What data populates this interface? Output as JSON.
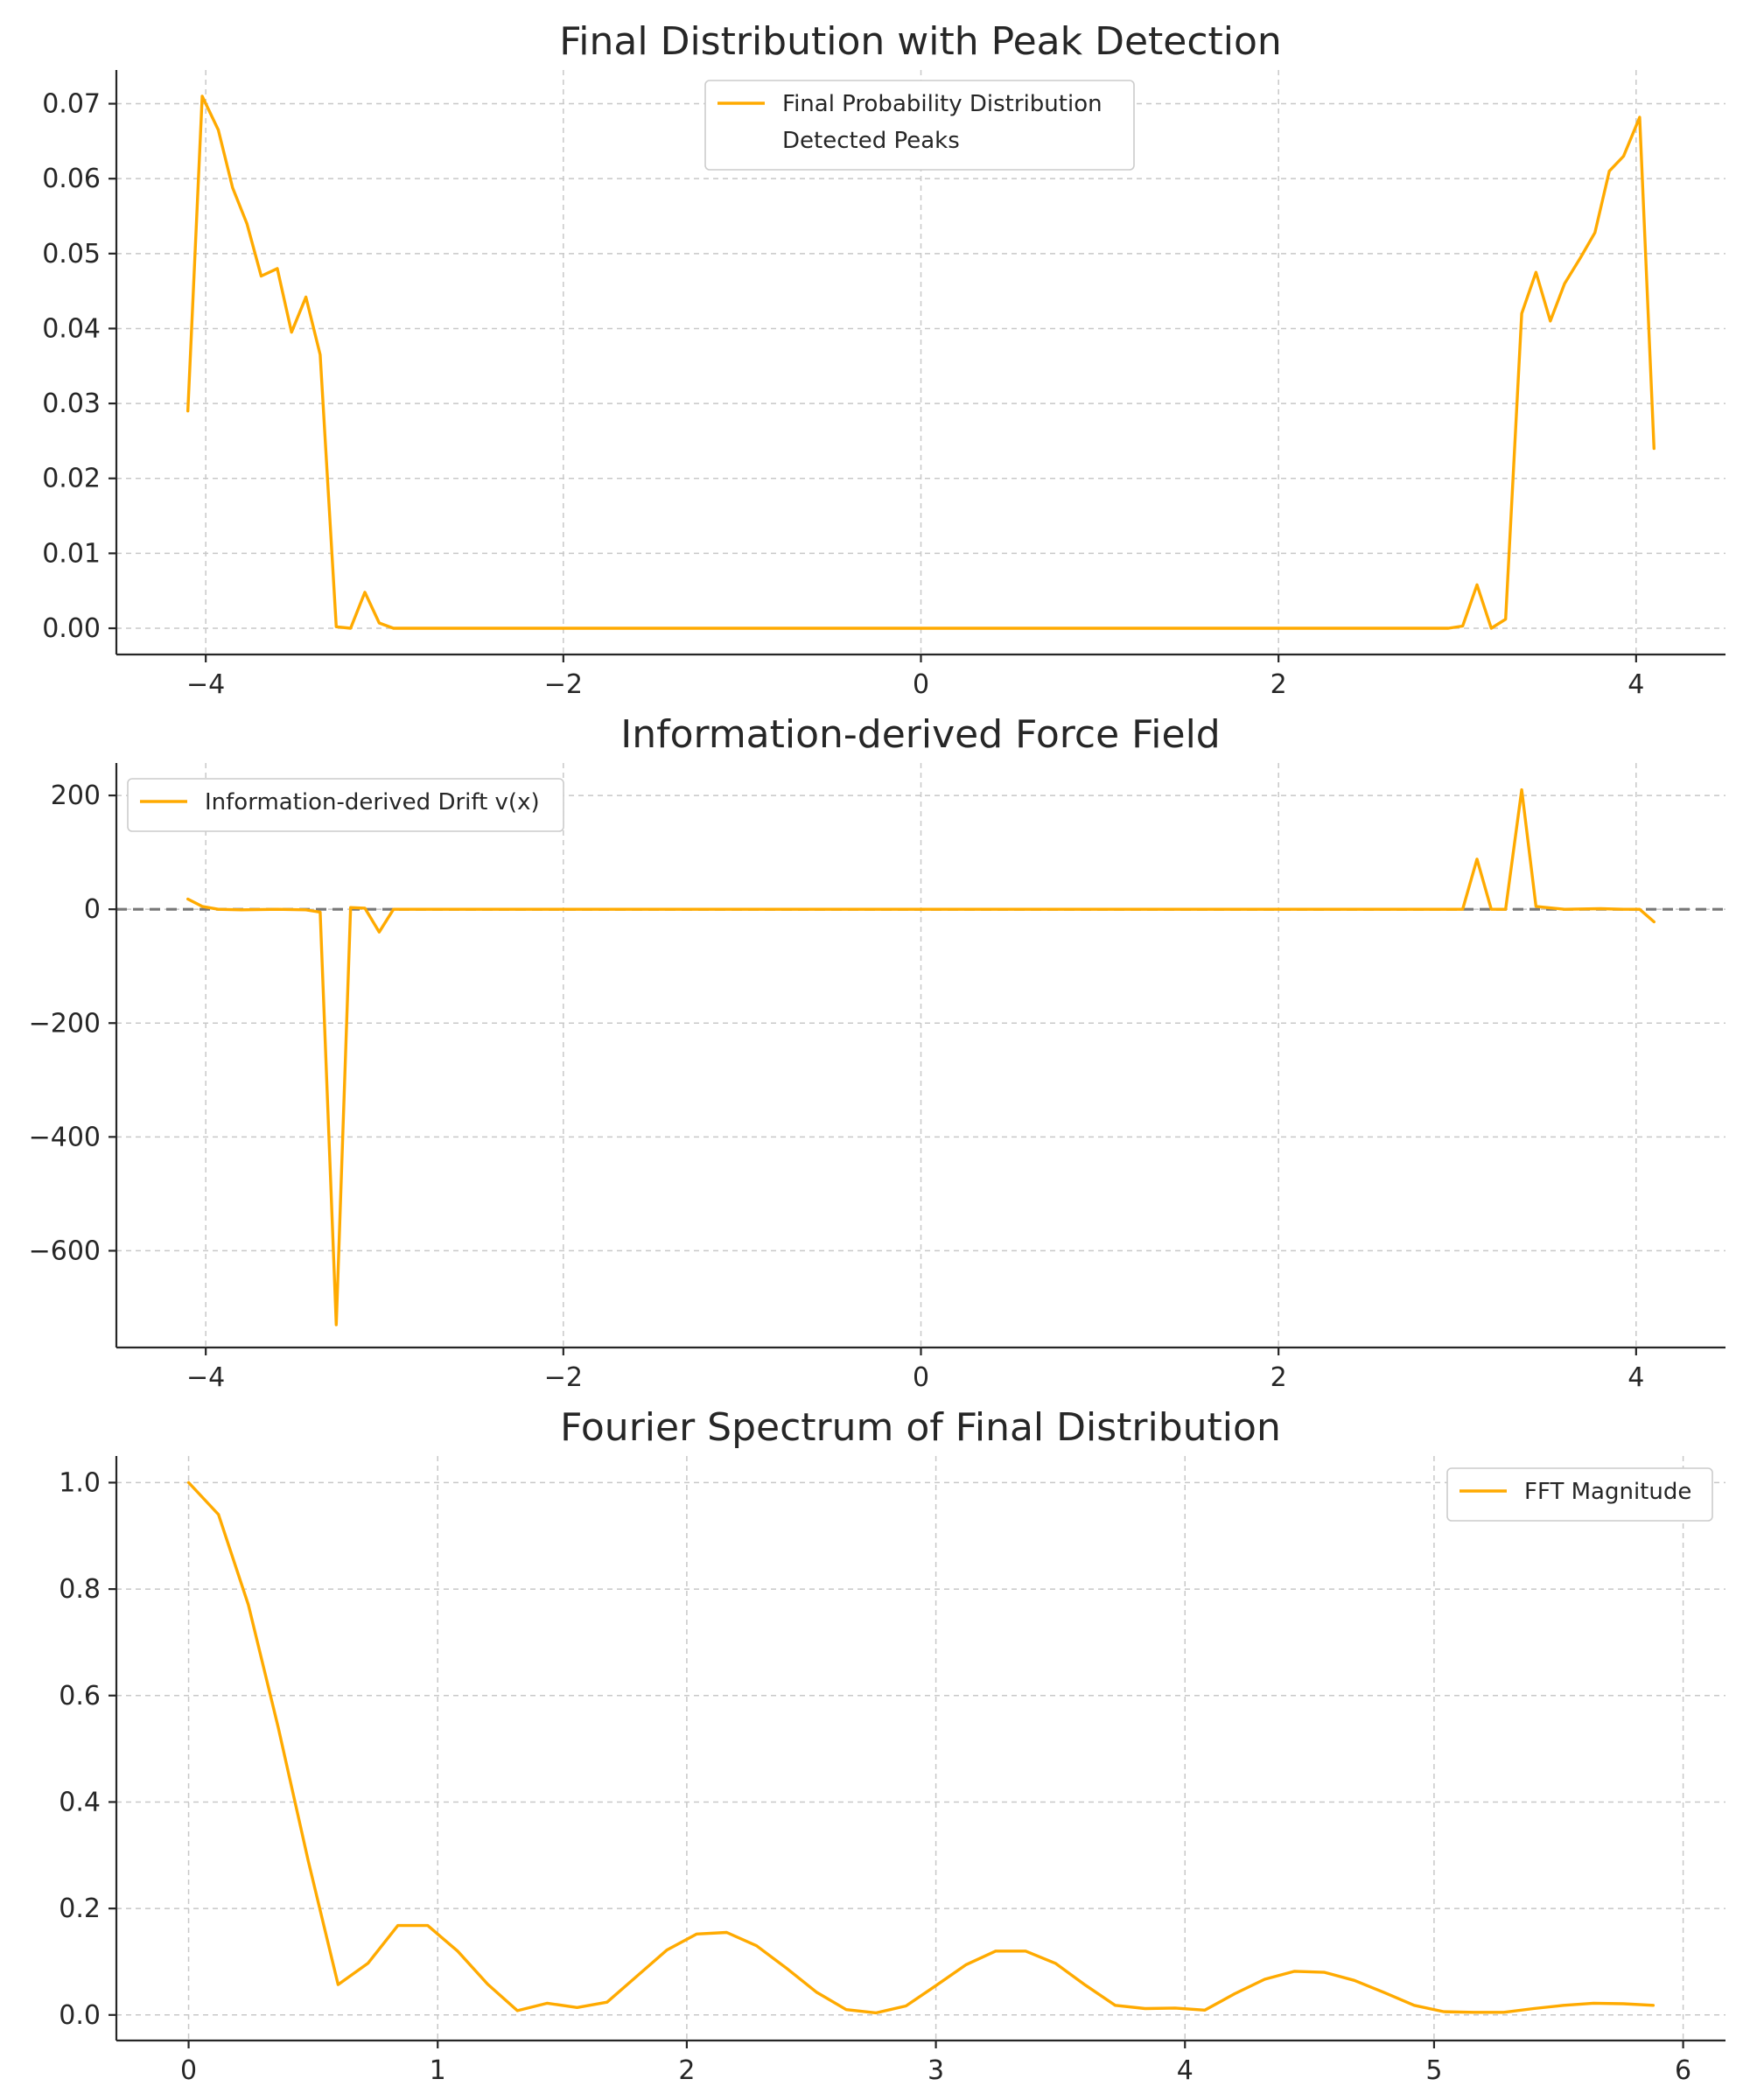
{
  "colors": {
    "line": "#FFAA00",
    "grid": "#c8c8c8",
    "axis": "#262626",
    "reference_line": "#777777"
  },
  "chart_data": [
    {
      "type": "line",
      "title": "Final Distribution with Peak Detection",
      "xlabel": "",
      "ylabel": "",
      "xlim": [
        -4.5,
        4.5
      ],
      "ylim": [
        -0.0035,
        0.0745
      ],
      "xticks": [
        -4,
        -2,
        0,
        2,
        4
      ],
      "xtick_labels": [
        "−4",
        "−2",
        "0",
        "2",
        "4"
      ],
      "yticks": [
        0.0,
        0.01,
        0.02,
        0.03,
        0.04,
        0.05,
        0.06,
        0.07
      ],
      "ytick_labels": [
        "0.00",
        "0.01",
        "0.02",
        "0.03",
        "0.04",
        "0.05",
        "0.06",
        "0.07"
      ],
      "grid": true,
      "legend": {
        "position": "upper-center",
        "entries": [
          "Final Probability Distribution",
          "Detected Peaks"
        ]
      },
      "series": [
        {
          "name": "Final Probability Distribution",
          "color": "#FFAA00",
          "x": [
            -4.1,
            -4.02,
            -3.93,
            -3.85,
            -3.77,
            -3.69,
            -3.6,
            -3.52,
            -3.44,
            -3.36,
            -3.27,
            -3.19,
            -3.11,
            -3.03,
            -2.95,
            -2.8,
            -2.5,
            -2.0,
            -1.0,
            0.0,
            1.0,
            2.0,
            2.5,
            2.8,
            2.95,
            3.03,
            3.11,
            3.19,
            3.27,
            3.36,
            3.44,
            3.52,
            3.6,
            3.69,
            3.77,
            3.85,
            3.93,
            4.02,
            4.1
          ],
          "y": [
            0.029,
            0.071,
            0.0665,
            0.0588,
            0.054,
            0.047,
            0.048,
            0.0395,
            0.0442,
            0.0365,
            0.0002,
            0.0,
            0.0048,
            0.0007,
            0.0,
            0.0,
            0.0,
            0.0,
            0.0,
            0.0,
            0.0,
            0.0,
            0.0,
            0.0,
            0.0,
            0.0003,
            0.0058,
            0.0,
            0.0012,
            0.042,
            0.0475,
            0.041,
            0.046,
            0.0495,
            0.0528,
            0.061,
            0.063,
            0.0682,
            0.024
          ]
        },
        {
          "name": "Detected Peaks",
          "color": "none",
          "x": [],
          "y": []
        }
      ]
    },
    {
      "type": "line",
      "title": "Information-derived Force Field",
      "xlabel": "",
      "ylabel": "",
      "xlim": [
        -4.5,
        4.5
      ],
      "ylim": [
        -770,
        257
      ],
      "xticks": [
        -4,
        -2,
        0,
        2,
        4
      ],
      "xtick_labels": [
        "−4",
        "−2",
        "0",
        "2",
        "4"
      ],
      "yticks": [
        -600,
        -400,
        -200,
        0,
        200
      ],
      "ytick_labels": [
        "−600",
        "−400",
        "−200",
        "0",
        "200"
      ],
      "grid": true,
      "reference_line": {
        "y": 0,
        "style": "dashed"
      },
      "legend": {
        "position": "upper-left",
        "entries": [
          "Information-derived Drift v(x)"
        ]
      },
      "series": [
        {
          "name": "Information-derived Drift v(x)",
          "color": "#FFAA00",
          "x": [
            -4.1,
            -4.02,
            -3.93,
            -3.8,
            -3.6,
            -3.44,
            -3.36,
            -3.27,
            -3.19,
            -3.11,
            -3.03,
            -2.95,
            -2.5,
            -1.5,
            0.0,
            1.5,
            2.5,
            2.95,
            3.03,
            3.11,
            3.19,
            3.27,
            3.36,
            3.44,
            3.6,
            3.8,
            3.93,
            4.02,
            4.1
          ],
          "y": [
            18,
            5,
            0,
            -1,
            0,
            -1,
            -5,
            -730,
            3,
            2,
            -40,
            0,
            0,
            0,
            0,
            0,
            0,
            0,
            0,
            88,
            0,
            0,
            210,
            5,
            0,
            1,
            0,
            0,
            -22
          ]
        }
      ]
    },
    {
      "type": "line",
      "title": "Fourier Spectrum of Final Distribution",
      "xlabel": "",
      "ylabel": "",
      "xlim": [
        -0.29,
        6.17
      ],
      "ylim": [
        -0.048,
        1.05
      ],
      "xticks": [
        0,
        1,
        2,
        3,
        4,
        5,
        6
      ],
      "xtick_labels": [
        "0",
        "1",
        "2",
        "3",
        "4",
        "5",
        "6"
      ],
      "yticks": [
        0.0,
        0.2,
        0.4,
        0.6,
        0.8,
        1.0
      ],
      "ytick_labels": [
        "0.0",
        "0.2",
        "0.4",
        "0.6",
        "0.8",
        "1.0"
      ],
      "grid": true,
      "legend": {
        "position": "upper-right",
        "entries": [
          "FFT Magnitude"
        ]
      },
      "series": [
        {
          "name": "FFT Magnitude",
          "color": "#FFAA00",
          "x": [
            0.0,
            0.12,
            0.24,
            0.36,
            0.48,
            0.6,
            0.72,
            0.84,
            0.96,
            1.08,
            1.2,
            1.32,
            1.44,
            1.56,
            1.68,
            1.8,
            1.92,
            2.04,
            2.16,
            2.28,
            2.4,
            2.52,
            2.64,
            2.76,
            2.88,
            3.0,
            3.12,
            3.24,
            3.36,
            3.48,
            3.6,
            3.72,
            3.84,
            3.96,
            4.08,
            4.2,
            4.32,
            4.44,
            4.56,
            4.68,
            4.8,
            4.92,
            5.04,
            5.16,
            5.28,
            5.4,
            5.52,
            5.64,
            5.76,
            5.88
          ],
          "y": [
            1.0,
            0.94,
            0.77,
            0.54,
            0.29,
            0.057,
            0.097,
            0.168,
            0.168,
            0.12,
            0.058,
            0.008,
            0.022,
            0.014,
            0.024,
            0.073,
            0.122,
            0.152,
            0.155,
            0.13,
            0.088,
            0.043,
            0.01,
            0.004,
            0.017,
            0.055,
            0.094,
            0.12,
            0.12,
            0.097,
            0.056,
            0.018,
            0.012,
            0.013,
            0.009,
            0.04,
            0.067,
            0.082,
            0.08,
            0.065,
            0.042,
            0.018,
            0.006,
            0.005,
            0.005,
            0.012,
            0.018,
            0.022,
            0.021,
            0.018
          ]
        }
      ]
    }
  ]
}
